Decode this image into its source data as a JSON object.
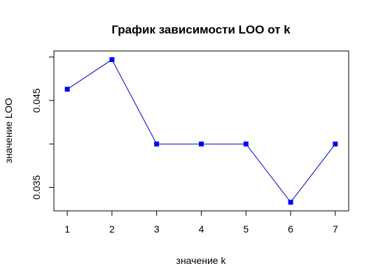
{
  "chart_data": {
    "type": "line",
    "title": "График зависимости LOO от k",
    "xlabel": "значение k",
    "ylabel": "значение LOO",
    "x": [
      1,
      2,
      3,
      4,
      5,
      6,
      7
    ],
    "series": [
      {
        "values": [
          0.0463,
          0.0497,
          0.04,
          0.04,
          0.04,
          0.0333,
          0.04
        ],
        "line_color": "#0000cd",
        "marker_color": "#0000ff",
        "marker": "square"
      }
    ],
    "xlim": [
      0.7,
      7.3
    ],
    "ylim": [
      0.0323,
      0.0507
    ],
    "xticks": [
      "1",
      "2",
      "3",
      "4",
      "5",
      "6",
      "7"
    ],
    "yticks": [
      "0.035",
      "0.045"
    ],
    "ytick_values": [
      0.035,
      0.045
    ],
    "minor_yticks": [
      0.04,
      0.05
    ],
    "grid": false,
    "legend": "none"
  }
}
